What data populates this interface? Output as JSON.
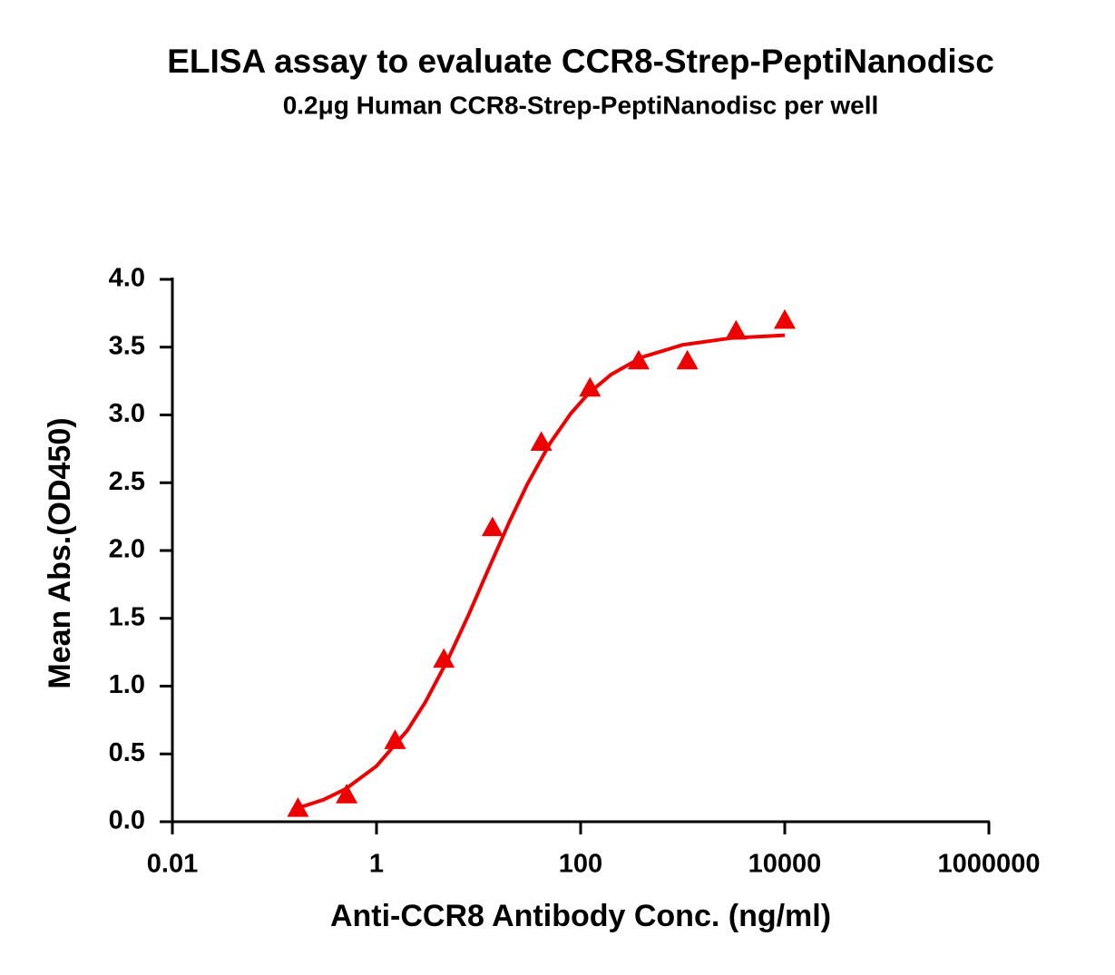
{
  "chart_data": {
    "type": "scatter",
    "title": "ELISA assay to evaluate CCR8-Strep-PeptiNanodisc",
    "subtitle": "0.2μg Human CCR8-Strep-PeptiNanodisc per well",
    "x_label": "Anti-CCR8 Antibody Conc. (ng/ml)",
    "y_label": "Mean Abs.(OD450)",
    "xscale": "log",
    "xlim": [
      0.01,
      1000000
    ],
    "xticks": [
      0.01,
      1,
      100,
      10000,
      1000000
    ],
    "ylim": [
      0,
      4
    ],
    "yticks": [
      {
        "value": 0,
        "label": "0.0"
      },
      0.5,
      {
        "value": 1,
        "label": "1.0"
      },
      1.5,
      {
        "value": 2,
        "label": "2.0"
      },
      2.5,
      {
        "value": 3,
        "label": "3.0"
      },
      3.5,
      {
        "value": 4,
        "label": "4.0"
      }
    ],
    "grid": false,
    "series": [
      {
        "color": "#ee0000",
        "marker": "triangle",
        "x": [
          0.17,
          0.51,
          1.52,
          4.57,
          13.7,
          41.2,
          123.5,
          370.4,
          1111,
          3333,
          10000
        ],
        "values": [
          0.1,
          0.2,
          0.6,
          1.2,
          2.17,
          2.8,
          3.2,
          3.4,
          3.4,
          3.62,
          3.7
        ]
      },
      {
        "color": "#ee0000",
        "marker": "line",
        "x": [
          0.17,
          0.3,
          0.5,
          1,
          2,
          3,
          5,
          8,
          12,
          20,
          30,
          50,
          80,
          120,
          200,
          400,
          1000,
          3000,
          10000
        ],
        "values": [
          0.101,
          0.161,
          0.242,
          0.41,
          0.673,
          0.88,
          1.195,
          1.527,
          1.832,
          2.211,
          2.488,
          2.789,
          3.01,
          3.16,
          3.3,
          3.426,
          3.517,
          3.567,
          3.588
        ]
      }
    ]
  }
}
